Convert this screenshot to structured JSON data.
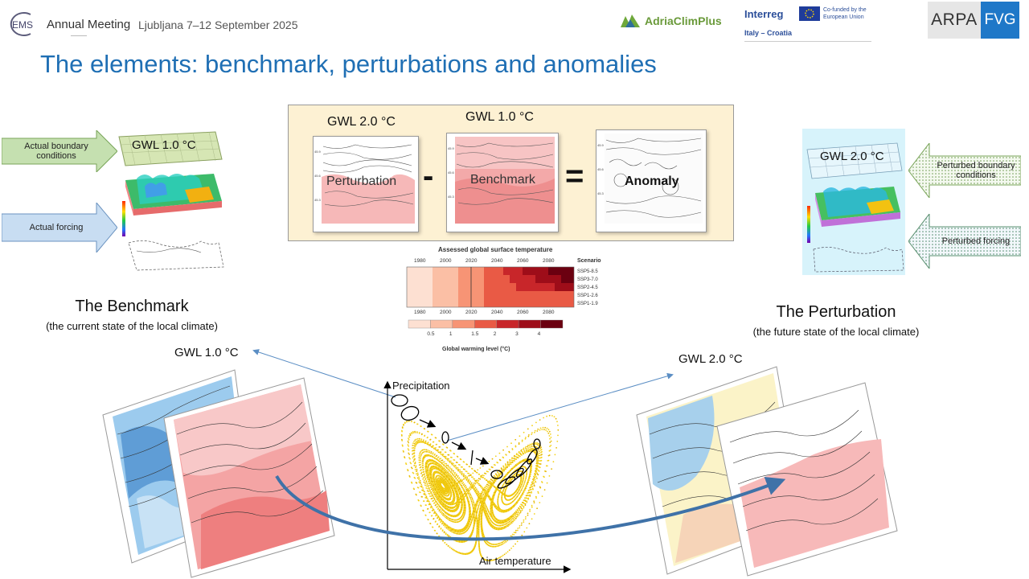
{
  "header": {
    "ems_logo": "EMS",
    "meeting_name": "Annual Meeting",
    "meeting_place_date": "Ljubljana 7–12 September 2025",
    "adria_logo": "AdriaClimPlus",
    "interreg_logo": "Interreg",
    "interreg_region": "Italy – Croatia",
    "eu_text": "Co-funded by the European Union",
    "arpa_logo": "ARPA",
    "fvg_logo": "FVG"
  },
  "title": "The elements: benchmark, perturbations and anomalies",
  "left_panel": {
    "arrow_top": "Actual boundary conditions",
    "arrow_bottom": "Actual forcing",
    "gwl": "GWL 1.0 °C"
  },
  "right_panel": {
    "arrow_top": "Perturbed boundary conditions",
    "arrow_bottom": "Perturbed forcing",
    "gwl": "GWL 2.0 °C"
  },
  "equation": {
    "gwl_left": "GWL 2.0 °C",
    "gwl_right": "GWL 1.0 °C",
    "perturbation": "Perturbation",
    "minus": "-",
    "benchmark": "Benchmark",
    "equals": "=",
    "anomaly": "Anomaly"
  },
  "ipcc_chart": {
    "title": "Assessed global surface temperature",
    "years": [
      "1980",
      "2000",
      "2020",
      "2040",
      "2060",
      "2080"
    ],
    "scenario_header": "Scenario",
    "scenarios": [
      "SSP5-8.5",
      "SSP3-7.0",
      "SSP2-4.5",
      "SSP1-2.6",
      "SSP1-1.9"
    ],
    "colorbar_ticks": [
      "0.5",
      "1",
      "1.5",
      "2",
      "3",
      "4"
    ],
    "colorbar_label": "Global warming level (°C)",
    "colors": [
      "#fde0d2",
      "#fbbfa5",
      "#f79475",
      "#e95a45",
      "#c8262a",
      "#9e0d19",
      "#6b0010"
    ]
  },
  "benchmark": {
    "heading": "The Benchmark",
    "note": "(the current state of the local climate)",
    "gwl": "GWL 1.0 °C"
  },
  "perturbation": {
    "heading": "The Perturbation",
    "note": "(the future state of the local climate)",
    "gwl": "GWL 2.0 °C"
  },
  "attractor": {
    "y_label": "Precipitation",
    "x_label": "Air temperature"
  }
}
